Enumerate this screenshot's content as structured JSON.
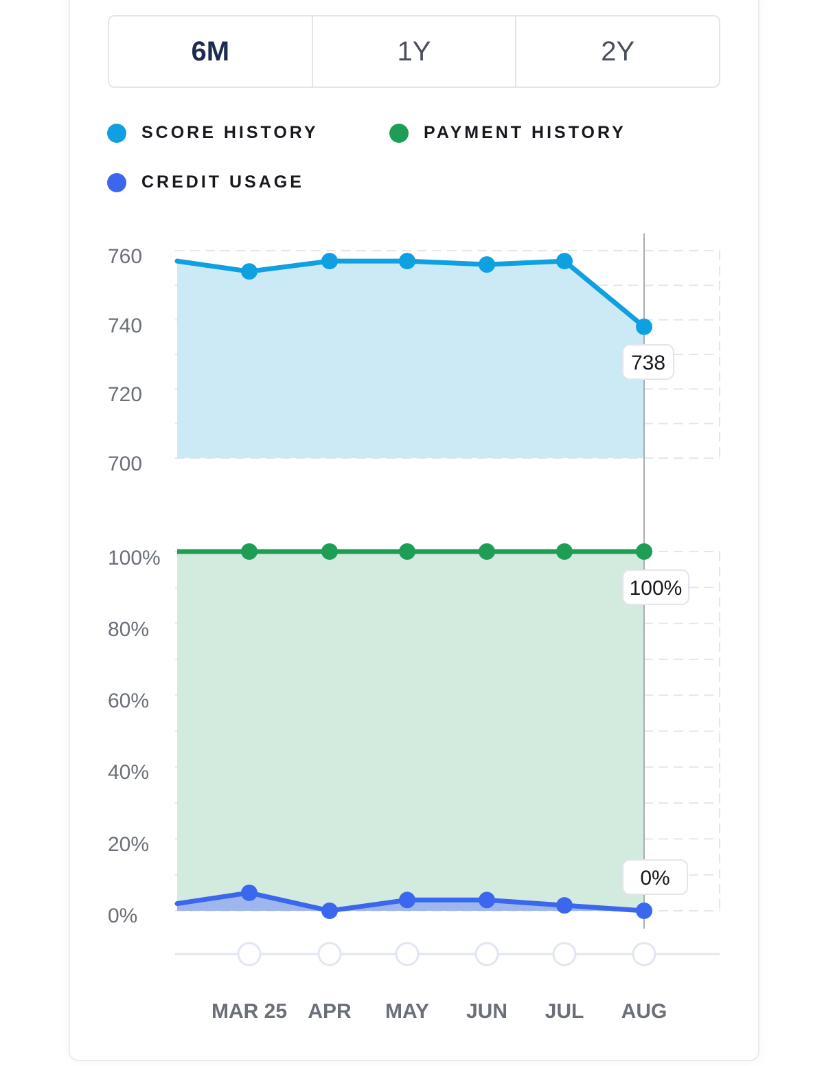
{
  "tabs": [
    {
      "label": "6M",
      "active": true
    },
    {
      "label": "1Y",
      "active": false
    },
    {
      "label": "2Y",
      "active": false
    }
  ],
  "legend": [
    {
      "label": "SCORE HISTORY",
      "color": "#0ea0e0"
    },
    {
      "label": "PAYMENT HISTORY",
      "color": "#1e9e55"
    },
    {
      "label": "CREDIT USAGE",
      "color": "#3a67ee"
    }
  ],
  "colors": {
    "score": "#0ea0e0",
    "score_fill": "#cce9f6",
    "payment": "#1e9e55",
    "payment_fill": "#d3eadf",
    "usage": "#3a67ee",
    "usage_fill": "#9db6ee"
  },
  "chart_data": [
    {
      "type": "area",
      "name": "score",
      "x": [
        "",
        "MAR 25",
        "APR",
        "MAY",
        "JUN",
        "JUL",
        "AUG"
      ],
      "values": [
        757,
        754,
        757,
        757,
        756,
        757,
        738
      ],
      "ylim": [
        700,
        760
      ],
      "yticks": [
        "760",
        "740",
        "720",
        "700"
      ],
      "callout": "738"
    },
    {
      "type": "area",
      "name": "payment",
      "x": [
        "",
        "MAR 25",
        "APR",
        "MAY",
        "JUN",
        "JUL",
        "AUG"
      ],
      "values": [
        100,
        100,
        100,
        100,
        100,
        100,
        100
      ],
      "ylim": [
        0,
        100
      ],
      "yticks": [
        "100%",
        "80%",
        "60%",
        "40%",
        "20%",
        "0%"
      ],
      "callout": "100%"
    },
    {
      "type": "area",
      "name": "usage",
      "x": [
        "",
        "MAR 25",
        "APR",
        "MAY",
        "JUN",
        "JUL",
        "AUG"
      ],
      "values": [
        2,
        5,
        0,
        3,
        3,
        1.5,
        0
      ],
      "ylim": [
        0,
        100
      ],
      "callout": "0%"
    }
  ],
  "x_labels": [
    "MAR 25",
    "APR",
    "MAY",
    "JUN",
    "JUL",
    "AUG"
  ]
}
